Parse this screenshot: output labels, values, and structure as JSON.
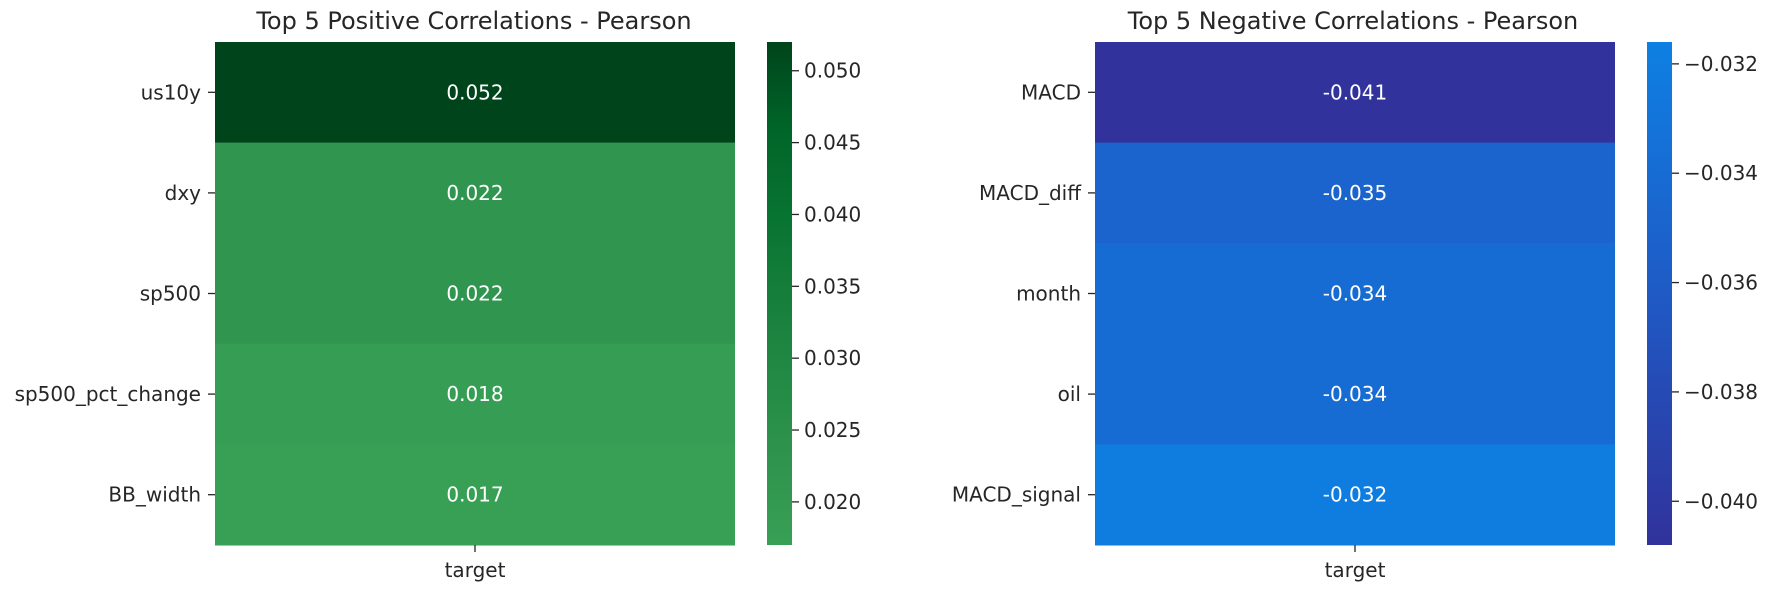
{
  "chart_data": [
    {
      "type": "heatmap",
      "title": "Top 5 Positive Correlations - Pearson",
      "columns": [
        "target"
      ],
      "rows": [
        "us10y",
        "dxy",
        "sp500",
        "sp500_pct_change",
        "BB_width"
      ],
      "values": [
        0.052,
        0.022,
        0.022,
        0.018,
        0.017
      ],
      "value_labels": [
        "0.052",
        "0.022",
        "0.022",
        "0.018",
        "0.017"
      ],
      "colormap": "Greens",
      "colorbar": {
        "range": [
          0.017,
          0.052
        ],
        "ticks": [
          0.02,
          0.025,
          0.03,
          0.035,
          0.04,
          0.045,
          0.05
        ],
        "tick_labels": [
          "0.020",
          "0.025",
          "0.030",
          "0.035",
          "0.040",
          "0.045",
          "0.050"
        ],
        "colors": [
          "#38a055",
          "#2f944e",
          "#228a44",
          "#157e3a",
          "#077331",
          "#006428",
          "#00441b"
        ]
      }
    },
    {
      "type": "heatmap",
      "title": "Top 5 Negative Correlations - Pearson",
      "columns": [
        "target"
      ],
      "rows": [
        "MACD",
        "MACD_diff",
        "month",
        "oil",
        "MACD_signal"
      ],
      "values": [
        -0.041,
        -0.035,
        -0.034,
        -0.034,
        -0.032
      ],
      "value_labels": [
        "-0.041",
        "-0.035",
        "-0.034",
        "-0.034",
        "-0.032"
      ],
      "colormap": "blue",
      "colorbar": {
        "range": [
          -0.0408,
          -0.0316
        ],
        "ticks": [
          -0.04,
          -0.038,
          -0.036,
          -0.034,
          -0.032
        ],
        "tick_labels": [
          "−0.040",
          "−0.038",
          "−0.036",
          "−0.034",
          "−0.032"
        ],
        "colors": [
          "#31329b",
          "#1f5ac5",
          "#0e80e3"
        ]
      }
    }
  ]
}
